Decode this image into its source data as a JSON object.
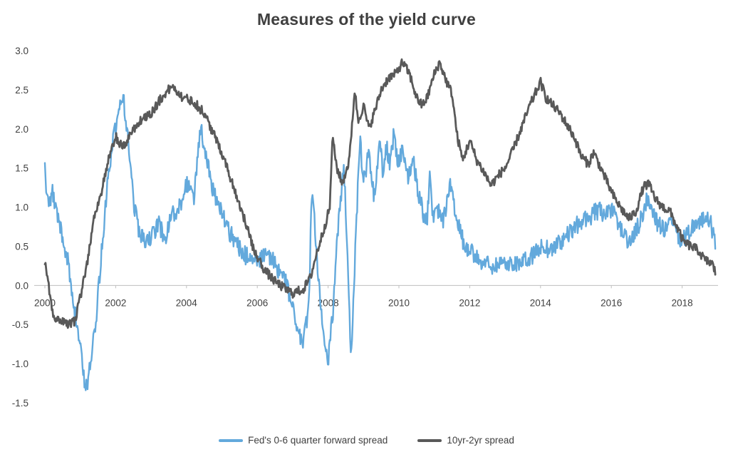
{
  "chart_data": {
    "type": "line",
    "title": "Measures of the yield curve",
    "xlabel": "",
    "ylabel": "",
    "x_ticks": [
      2000,
      2002,
      2004,
      2006,
      2008,
      2010,
      2012,
      2014,
      2016,
      2018
    ],
    "y_ticks": [
      3.0,
      2.5,
      2.0,
      1.5,
      1.0,
      0.5,
      0.0,
      -0.5,
      -1.0,
      -1.5
    ],
    "x_range": [
      2000,
      2018.95
    ],
    "ylim": [
      -1.5,
      3.0
    ],
    "grid": false,
    "legend_position": "bottom",
    "axis_color": "#bfbfbf",
    "text_color": "#404040",
    "series": [
      {
        "name": "Fed's 0-6 quarter forward spread",
        "color": "#63a9dc",
        "width": 2.4,
        "noise": 0.12,
        "keypoints": [
          [
            2000.0,
            1.5
          ],
          [
            2000.08,
            1.0
          ],
          [
            2000.2,
            1.2
          ],
          [
            2000.35,
            0.9
          ],
          [
            2000.5,
            0.6
          ],
          [
            2000.65,
            0.3
          ],
          [
            2000.8,
            -0.2
          ],
          [
            2001.0,
            -0.8
          ],
          [
            2001.15,
            -1.35
          ],
          [
            2001.3,
            -1.0
          ],
          [
            2001.45,
            -0.4
          ],
          [
            2001.6,
            0.4
          ],
          [
            2001.75,
            1.2
          ],
          [
            2001.9,
            1.8
          ],
          [
            2002.05,
            2.1
          ],
          [
            2002.2,
            2.45
          ],
          [
            2002.35,
            1.9
          ],
          [
            2002.5,
            1.1
          ],
          [
            2002.65,
            0.7
          ],
          [
            2002.8,
            0.55
          ],
          [
            2003.0,
            0.6
          ],
          [
            2003.2,
            0.8
          ],
          [
            2003.4,
            0.6
          ],
          [
            2003.6,
            0.9
          ],
          [
            2003.8,
            1.0
          ],
          [
            2004.0,
            1.3
          ],
          [
            2004.2,
            1.1
          ],
          [
            2004.4,
            2.0
          ],
          [
            2004.55,
            1.7
          ],
          [
            2004.7,
            1.3
          ],
          [
            2004.85,
            1.1
          ],
          [
            2005.0,
            0.9
          ],
          [
            2005.2,
            0.7
          ],
          [
            2005.4,
            0.55
          ],
          [
            2005.6,
            0.4
          ],
          [
            2005.8,
            0.35
          ],
          [
            2006.0,
            0.3
          ],
          [
            2006.2,
            0.4
          ],
          [
            2006.4,
            0.35
          ],
          [
            2006.6,
            0.2
          ],
          [
            2006.8,
            0.05
          ],
          [
            2007.0,
            -0.3
          ],
          [
            2007.15,
            -0.6
          ],
          [
            2007.3,
            -0.75
          ],
          [
            2007.45,
            -0.3
          ],
          [
            2007.55,
            1.3
          ],
          [
            2007.7,
            0.2
          ],
          [
            2007.85,
            -0.6
          ],
          [
            2008.0,
            -0.95
          ],
          [
            2008.15,
            -0.3
          ],
          [
            2008.3,
            0.9
          ],
          [
            2008.45,
            1.5
          ],
          [
            2008.55,
            0.3
          ],
          [
            2008.65,
            -1.0
          ],
          [
            2008.78,
            0.6
          ],
          [
            2008.9,
            1.9
          ],
          [
            2009.0,
            1.3
          ],
          [
            2009.15,
            1.7
          ],
          [
            2009.3,
            1.1
          ],
          [
            2009.45,
            1.9
          ],
          [
            2009.55,
            1.4
          ],
          [
            2009.65,
            1.8
          ],
          [
            2009.75,
            1.5
          ],
          [
            2009.85,
            1.9
          ],
          [
            2009.95,
            1.6
          ],
          [
            2010.1,
            1.7
          ],
          [
            2010.25,
            1.4
          ],
          [
            2010.4,
            1.6
          ],
          [
            2010.55,
            1.2
          ],
          [
            2010.7,
            0.9
          ],
          [
            2010.8,
            0.8
          ],
          [
            2010.88,
            1.55
          ],
          [
            2010.95,
            0.9
          ],
          [
            2011.1,
            0.95
          ],
          [
            2011.25,
            0.85
          ],
          [
            2011.45,
            1.25
          ],
          [
            2011.6,
            0.9
          ],
          [
            2011.75,
            0.65
          ],
          [
            2011.9,
            0.45
          ],
          [
            2012.1,
            0.4
          ],
          [
            2012.3,
            0.32
          ],
          [
            2012.5,
            0.28
          ],
          [
            2012.7,
            0.25
          ],
          [
            2012.9,
            0.3
          ],
          [
            2013.1,
            0.27
          ],
          [
            2013.3,
            0.3
          ],
          [
            2013.5,
            0.28
          ],
          [
            2013.7,
            0.35
          ],
          [
            2013.9,
            0.45
          ],
          [
            2014.1,
            0.5
          ],
          [
            2014.3,
            0.45
          ],
          [
            2014.5,
            0.55
          ],
          [
            2014.7,
            0.6
          ],
          [
            2014.9,
            0.7
          ],
          [
            2015.1,
            0.8
          ],
          [
            2015.3,
            0.85
          ],
          [
            2015.5,
            0.92
          ],
          [
            2015.7,
            0.95
          ],
          [
            2015.9,
            0.9
          ],
          [
            2016.05,
            0.95
          ],
          [
            2016.2,
            0.8
          ],
          [
            2016.4,
            0.6
          ],
          [
            2016.55,
            0.55
          ],
          [
            2016.7,
            0.7
          ],
          [
            2016.85,
            0.85
          ],
          [
            2017.0,
            1.1
          ],
          [
            2017.15,
            1.0
          ],
          [
            2017.3,
            0.8
          ],
          [
            2017.5,
            0.7
          ],
          [
            2017.7,
            0.8
          ],
          [
            2017.85,
            0.65
          ],
          [
            2018.0,
            0.55
          ],
          [
            2018.2,
            0.7
          ],
          [
            2018.4,
            0.8
          ],
          [
            2018.6,
            0.85
          ],
          [
            2018.8,
            0.8
          ],
          [
            2018.95,
            0.5
          ]
        ]
      },
      {
        "name": "10yr-2yr spread",
        "color": "#595959",
        "width": 2.8,
        "noise": 0.06,
        "keypoints": [
          [
            2000.0,
            0.3
          ],
          [
            2000.1,
            0.0
          ],
          [
            2000.25,
            -0.4
          ],
          [
            2000.45,
            -0.45
          ],
          [
            2000.65,
            -0.5
          ],
          [
            2000.85,
            -0.45
          ],
          [
            2001.0,
            -0.15
          ],
          [
            2001.2,
            0.3
          ],
          [
            2001.4,
            0.9
          ],
          [
            2001.6,
            1.2
          ],
          [
            2001.8,
            1.6
          ],
          [
            2002.0,
            1.9
          ],
          [
            2002.2,
            1.75
          ],
          [
            2002.5,
            2.0
          ],
          [
            2002.8,
            2.15
          ],
          [
            2003.0,
            2.2
          ],
          [
            2003.3,
            2.4
          ],
          [
            2003.6,
            2.55
          ],
          [
            2003.9,
            2.4
          ],
          [
            2004.2,
            2.35
          ],
          [
            2004.5,
            2.2
          ],
          [
            2004.8,
            1.9
          ],
          [
            2005.0,
            1.7
          ],
          [
            2005.3,
            1.3
          ],
          [
            2005.6,
            0.9
          ],
          [
            2005.9,
            0.45
          ],
          [
            2006.2,
            0.2
          ],
          [
            2006.5,
            0.05
          ],
          [
            2006.8,
            -0.05
          ],
          [
            2007.0,
            -0.1
          ],
          [
            2007.3,
            -0.05
          ],
          [
            2007.5,
            0.1
          ],
          [
            2007.7,
            0.45
          ],
          [
            2007.9,
            0.75
          ],
          [
            2008.05,
            1.0
          ],
          [
            2008.12,
            1.9
          ],
          [
            2008.25,
            1.5
          ],
          [
            2008.4,
            1.3
          ],
          [
            2008.6,
            1.6
          ],
          [
            2008.75,
            2.5
          ],
          [
            2008.85,
            2.1
          ],
          [
            2009.0,
            2.3
          ],
          [
            2009.15,
            2.0
          ],
          [
            2009.3,
            2.2
          ],
          [
            2009.5,
            2.5
          ],
          [
            2009.7,
            2.65
          ],
          [
            2009.9,
            2.7
          ],
          [
            2010.1,
            2.85
          ],
          [
            2010.3,
            2.7
          ],
          [
            2010.5,
            2.4
          ],
          [
            2010.65,
            2.3
          ],
          [
            2010.8,
            2.4
          ],
          [
            2011.0,
            2.7
          ],
          [
            2011.15,
            2.85
          ],
          [
            2011.35,
            2.6
          ],
          [
            2011.5,
            2.45
          ],
          [
            2011.65,
            1.9
          ],
          [
            2011.8,
            1.6
          ],
          [
            2012.0,
            1.85
          ],
          [
            2012.2,
            1.6
          ],
          [
            2012.4,
            1.45
          ],
          [
            2012.6,
            1.28
          ],
          [
            2012.8,
            1.4
          ],
          [
            2013.0,
            1.5
          ],
          [
            2013.2,
            1.7
          ],
          [
            2013.45,
            2.0
          ],
          [
            2013.7,
            2.3
          ],
          [
            2013.9,
            2.5
          ],
          [
            2014.0,
            2.6
          ],
          [
            2014.15,
            2.4
          ],
          [
            2014.35,
            2.3
          ],
          [
            2014.55,
            2.2
          ],
          [
            2014.75,
            2.05
          ],
          [
            2014.95,
            1.9
          ],
          [
            2015.15,
            1.65
          ],
          [
            2015.35,
            1.55
          ],
          [
            2015.5,
            1.7
          ],
          [
            2015.7,
            1.5
          ],
          [
            2015.9,
            1.3
          ],
          [
            2016.05,
            1.15
          ],
          [
            2016.25,
            1.0
          ],
          [
            2016.5,
            0.85
          ],
          [
            2016.7,
            0.95
          ],
          [
            2016.9,
            1.25
          ],
          [
            2017.05,
            1.3
          ],
          [
            2017.25,
            1.1
          ],
          [
            2017.45,
            1.0
          ],
          [
            2017.65,
            0.95
          ],
          [
            2017.85,
            0.75
          ],
          [
            2018.05,
            0.55
          ],
          [
            2018.25,
            0.5
          ],
          [
            2018.45,
            0.45
          ],
          [
            2018.65,
            0.32
          ],
          [
            2018.85,
            0.28
          ],
          [
            2018.95,
            0.15
          ]
        ]
      }
    ]
  }
}
